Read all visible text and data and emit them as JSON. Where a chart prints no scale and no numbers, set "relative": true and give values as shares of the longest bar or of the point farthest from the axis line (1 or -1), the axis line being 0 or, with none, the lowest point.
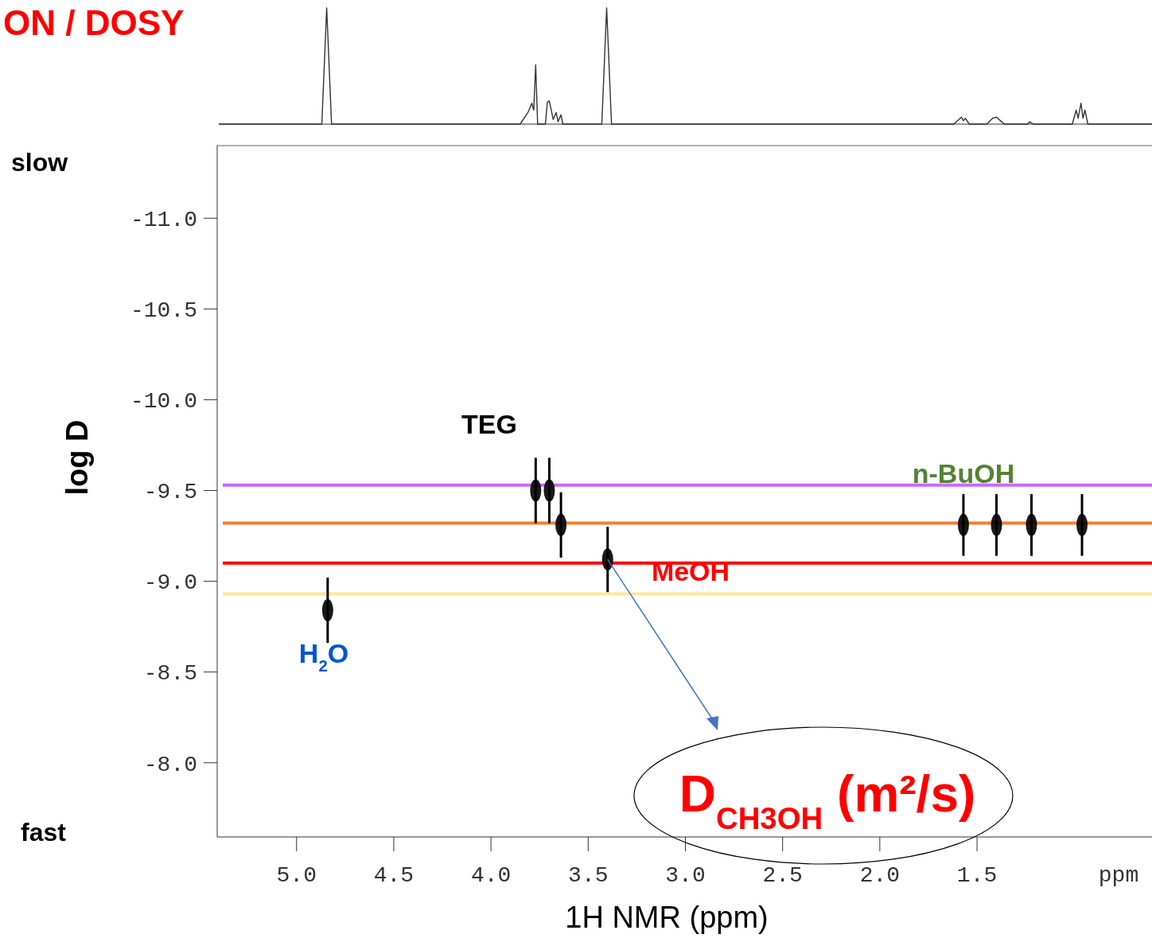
{
  "chart_data": [
    {
      "type": "line",
      "title": "ON / DOSY",
      "relative": true,
      "xlim": [
        5.4,
        0.6
      ],
      "series": [
        {
          "color": "#333333",
          "x": [
            5.4,
            4.87,
            4.845,
            4.82,
            3.85,
            3.81,
            3.79,
            3.78,
            3.77,
            3.76,
            3.72,
            3.71,
            3.7,
            3.69,
            3.68,
            3.665,
            3.655,
            3.64,
            3.63,
            3.43,
            3.405,
            3.38,
            1.62,
            1.58,
            1.57,
            1.56,
            1.54,
            1.45,
            1.42,
            1.4,
            1.38,
            1.36,
            1.24,
            1.23,
            1.21,
            1.01,
            0.99,
            0.98,
            0.965,
            0.955,
            0.945,
            0.93,
            0.6
          ],
          "values": [
            0,
            0,
            1,
            0,
            0,
            0.1,
            0.18,
            0.12,
            0.51,
            0,
            0,
            0.19,
            0.2,
            0.12,
            0.04,
            0.1,
            0.02,
            0.08,
            0,
            0,
            1,
            0,
            0,
            0.06,
            0.03,
            0.05,
            0,
            0,
            0.05,
            0.06,
            0.03,
            0,
            0,
            0.02,
            0,
            0,
            0.12,
            0.05,
            0.18,
            0.05,
            0.12,
            0,
            0
          ]
        }
      ]
    },
    {
      "type": "scatter",
      "xlabel": "1H NMR (ppm)",
      "ylabel": "log D",
      "xlim": [
        5.4,
        0.6
      ],
      "ylim": [
        -7.6,
        -11.4
      ],
      "grid": false,
      "xticks": [
        {
          "value": 5,
          "label": "5.0"
        },
        {
          "value": 4.5,
          "label": "4.5"
        },
        {
          "value": 4,
          "label": "4.0"
        },
        {
          "value": 3.5,
          "label": "3.5"
        },
        {
          "value": 3,
          "label": "3.0"
        },
        {
          "value": 2.5,
          "label": "2.5"
        },
        {
          "value": 2,
          "label": "2.0"
        },
        {
          "value": 1.5,
          "label": "1.5"
        }
      ],
      "yticks": [
        {
          "value": -11,
          "label": "-11.0"
        },
        {
          "value": -10.5,
          "label": "-10.5"
        },
        {
          "value": -10,
          "label": "-10.0"
        },
        {
          "value": -9.5,
          "label": "-9.5"
        },
        {
          "value": -9,
          "label": "-9.0"
        },
        {
          "value": -8.5,
          "label": "-8.5"
        },
        {
          "value": -8,
          "label": "-8.0"
        }
      ],
      "series": [
        {
          "color": "#000000",
          "x": [
            4.84,
            3.77,
            3.7,
            3.64,
            3.4,
            1.57,
            1.4,
            1.22,
            0.96
          ],
          "values": [
            -8.84,
            -9.5,
            -9.5,
            -9.31,
            -9.12,
            -9.31,
            -9.31,
            -9.31,
            -9.31
          ],
          "errors": [
            0.18,
            0.18,
            0.18,
            0.18,
            0.18,
            0.17,
            0.17,
            0.17,
            0.17
          ]
        }
      ],
      "ref_lines": [
        {
          "axis": "y",
          "value": -9.53,
          "color": "#cc66ff"
        },
        {
          "axis": "y",
          "value": -9.32,
          "color": "#f08030"
        },
        {
          "axis": "y",
          "value": -9.1,
          "color": "#ff0000"
        },
        {
          "axis": "y",
          "value": -8.93,
          "color": "#ffe699"
        }
      ],
      "annotations": [
        "TEG",
        "n-BuOH",
        "MeOH",
        "H$_{2}$O",
        "slow",
        "fast",
        "ppm",
        {
          "text": "D$_{CH3OH}$ (m²/s)",
          "x": 3.4,
          "y": -9.12
        }
      ]
    }
  ]
}
